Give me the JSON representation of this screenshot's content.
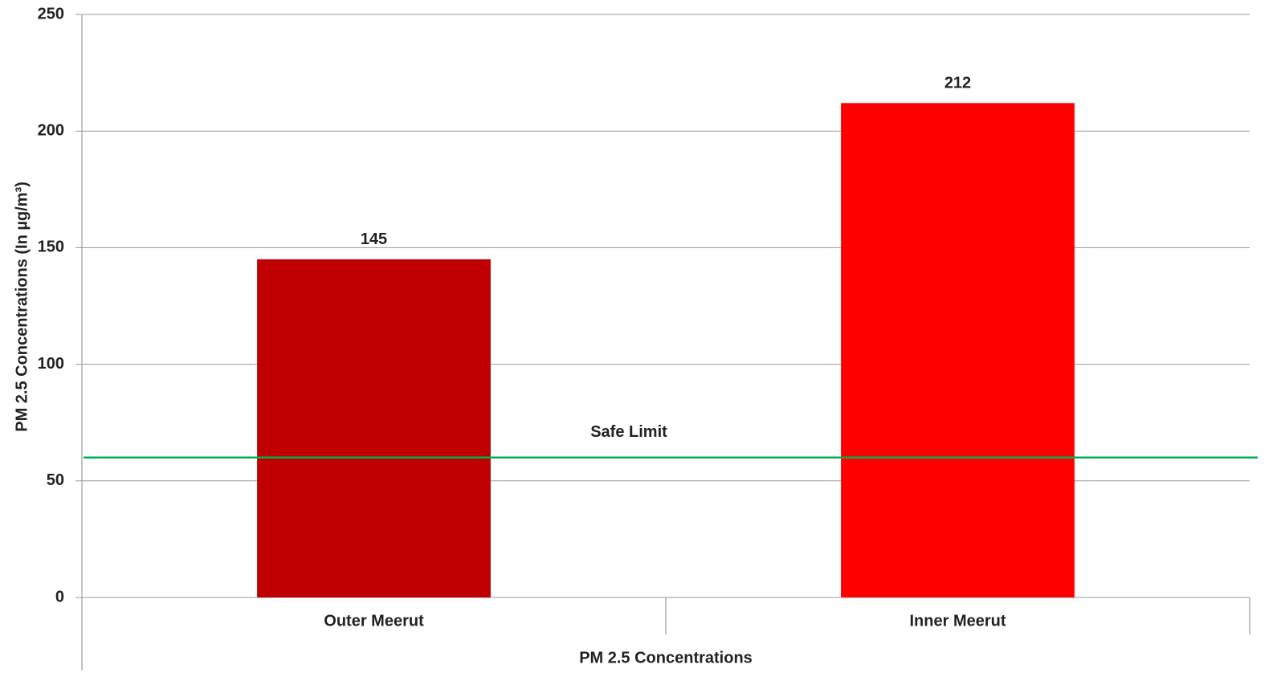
{
  "chart_data": {
    "type": "bar",
    "y_label": "PM 2.5 Concentrations (In µg/m³)",
    "x_label": "PM 2.5 Concentrations",
    "categories": [
      "Outer Meerut",
      "Inner Meerut"
    ],
    "values": [
      145,
      212
    ],
    "colors": [
      "#c00000",
      "#ff0000"
    ],
    "ylim": [
      0,
      250
    ],
    "yticks": [
      0,
      50,
      100,
      150,
      200,
      250
    ],
    "grid": true,
    "reference_line": {
      "value": 60,
      "label": "Safe Limit",
      "color": "#00b050"
    }
  }
}
